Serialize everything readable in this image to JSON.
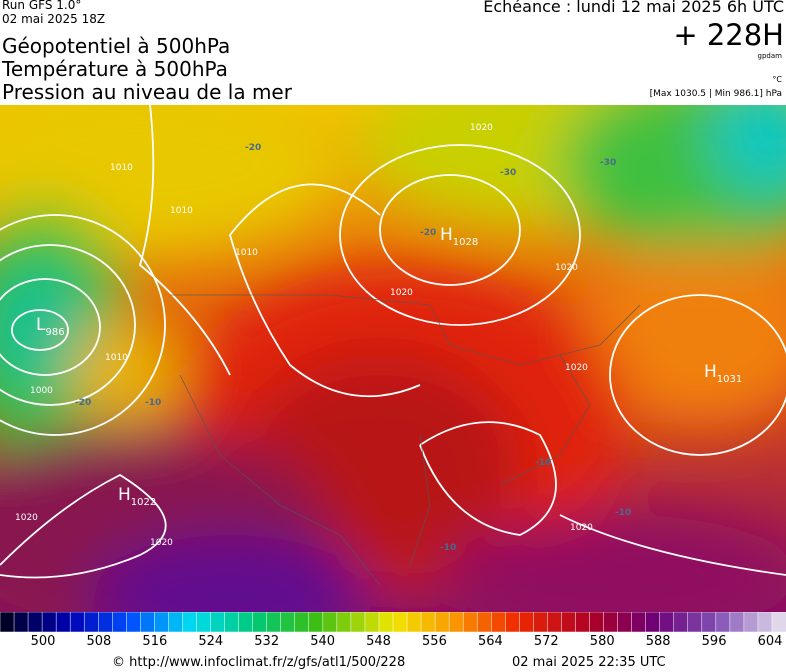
{
  "header": {
    "run": "Run GFS 1.0°",
    "date": "02 mai 2025 18Z",
    "titles": [
      "Géopotentiel à 500hPa",
      "Température à 500hPa",
      "Pression au niveau de la mer"
    ],
    "echeance": "Échéance : lundi 12 mai 2025 6h UTC",
    "lead": "+ 228H",
    "unit_height": "gpdam",
    "unit_temp": "°C",
    "range": "[Max 1030.5 | Min 986.1] hPa"
  },
  "map": {
    "centers": [
      {
        "symbol": "L",
        "value": "986"
      },
      {
        "symbol": "H",
        "value": "1028"
      },
      {
        "symbol": "H",
        "value": "1031"
      },
      {
        "symbol": "H",
        "value": "1022"
      }
    ],
    "isobar_labels": [
      "1020",
      "1010",
      "1010",
      "1010",
      "1000",
      "1010",
      "1020",
      "1020",
      "1020",
      "1020",
      "1020",
      "1020"
    ],
    "temp_labels": [
      "-20",
      "-30",
      "-20",
      "-20",
      "-30",
      "-10",
      "-10",
      "-10",
      "-10"
    ]
  },
  "colorbar": {
    "labels": [
      500,
      508,
      516,
      524,
      532,
      540,
      548,
      556,
      564,
      572,
      580,
      588,
      596,
      604
    ]
  },
  "footer": {
    "source": "© http://www.infoclimat.fr/z/gfs/atl1/500/228",
    "generated": "02 mai 2025 22:35 UTC"
  }
}
